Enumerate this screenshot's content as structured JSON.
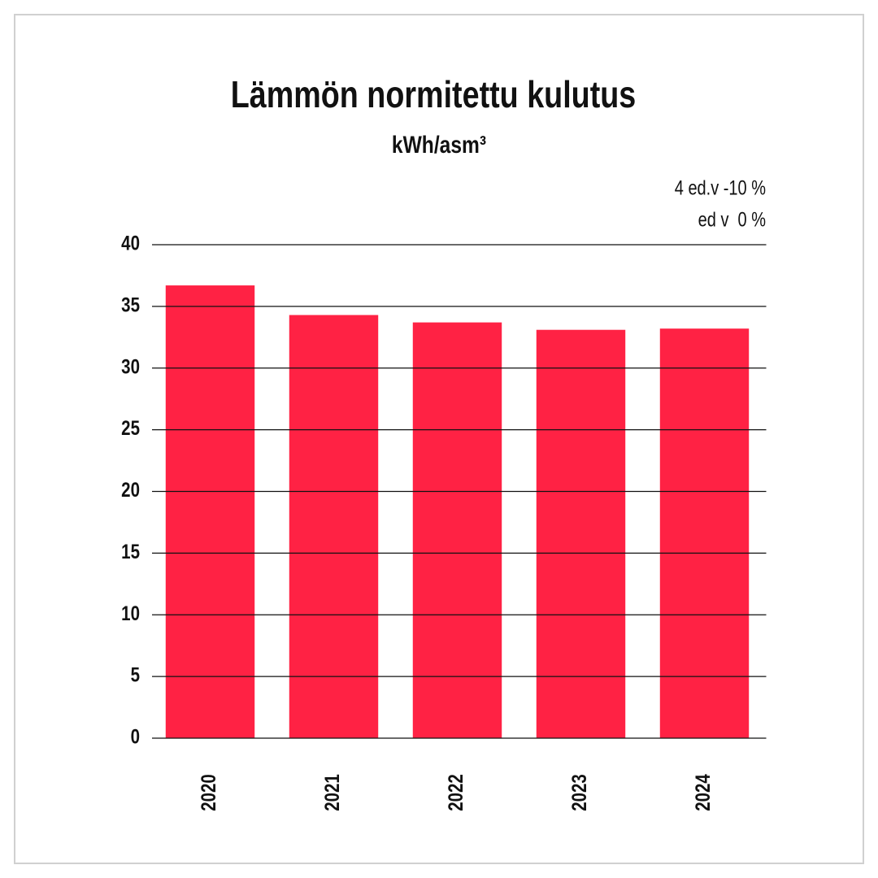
{
  "chart_data": {
    "type": "bar",
    "title": "Lämmön normitettu kulutus",
    "subtitle": "kWh/asm³",
    "annotations": [
      "4 ed.v -10 %",
      "ed v  0 %"
    ],
    "categories": [
      "2020",
      "2021",
      "2022",
      "2023",
      "2024"
    ],
    "values": [
      36.7,
      34.3,
      33.7,
      33.1,
      33.2
    ],
    "color": "#ff2244",
    "ylim": [
      0,
      40
    ],
    "yticks": [
      0,
      5,
      10,
      15,
      20,
      25,
      30,
      35,
      40
    ],
    "grid": true
  }
}
